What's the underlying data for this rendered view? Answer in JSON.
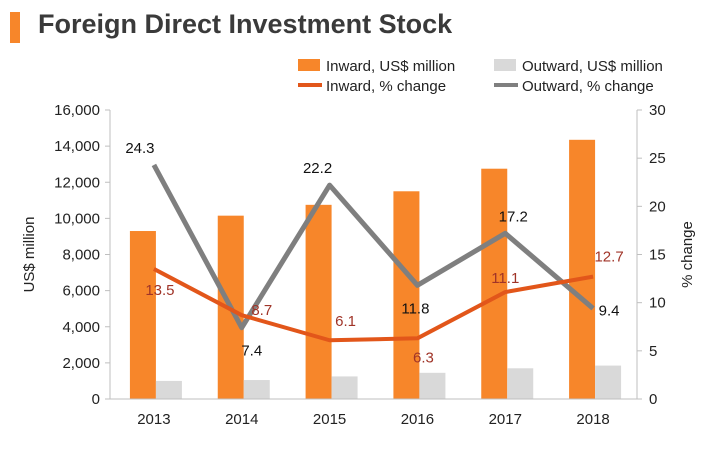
{
  "title": "Foreign Direct Investment Stock",
  "colors": {
    "accent": "#f7862a",
    "inward_bar": "#f7862a",
    "outward_bar": "#d9d9d9",
    "inward_line": "#e2561a",
    "outward_line": "#7f7f7f",
    "inward_label": "#a03428",
    "text": "#222222"
  },
  "chart_data": {
    "type": "bar",
    "title": "Foreign Direct Investment Stock",
    "categories": [
      "2013",
      "2014",
      "2015",
      "2016",
      "2017",
      "2018"
    ],
    "xlabel": "",
    "ylabel": "US$ million",
    "y2label": "% change",
    "ylim": [
      0,
      16000
    ],
    "y2lim": [
      0,
      30
    ],
    "yticks": [
      "0",
      "2,000",
      "4,000",
      "6,000",
      "8,000",
      "10,000",
      "12,000",
      "14,000",
      "16,000"
    ],
    "y2ticks": [
      "0",
      "5",
      "10",
      "15",
      "20",
      "25",
      "30"
    ],
    "legend_position": "top-right",
    "series": [
      {
        "name": "Inward, US$ million",
        "kind": "bar",
        "axis": "left",
        "values": [
          9300,
          10150,
          10750,
          11500,
          12750,
          14350
        ]
      },
      {
        "name": "Outward, US$ million",
        "kind": "bar",
        "axis": "left",
        "values": [
          1000,
          1050,
          1250,
          1450,
          1700,
          1850
        ]
      },
      {
        "name": "Inward, % change",
        "kind": "line",
        "axis": "right",
        "values": [
          13.5,
          8.7,
          6.1,
          6.3,
          11.1,
          12.7
        ],
        "labels": [
          "13.5",
          "8.7",
          "6.1",
          "6.3",
          "11.1",
          "12.7"
        ]
      },
      {
        "name": "Outward, % change",
        "kind": "line",
        "axis": "right",
        "values": [
          24.3,
          7.4,
          22.2,
          11.8,
          17.2,
          9.4
        ],
        "labels": [
          "24.3",
          "7.4",
          "22.2",
          "11.8",
          "17.2",
          "9.4"
        ]
      }
    ]
  }
}
